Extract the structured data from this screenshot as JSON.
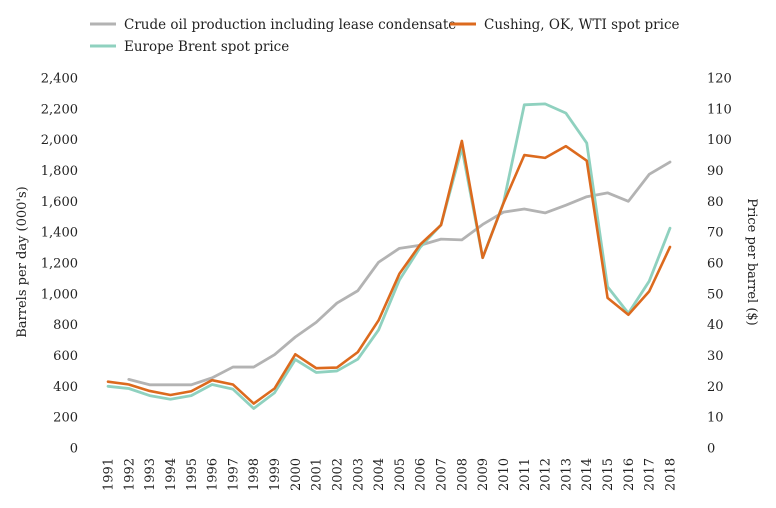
{
  "chart_data": {
    "type": "line",
    "categories": [
      "1991",
      "1992",
      "1993",
      "1994",
      "1995",
      "1996",
      "1997",
      "1998",
      "1999",
      "2000",
      "2001",
      "2002",
      "2003",
      "2004",
      "2005",
      "2006",
      "2007",
      "2008",
      "2009",
      "2010",
      "2011",
      "2012",
      "2013",
      "2014",
      "2015",
      "2016",
      "2017",
      "2018"
    ],
    "series": [
      {
        "name": "Crude oil production including lease condensate",
        "axis": "left",
        "color": "#b3b3b3",
        "values": [
          null,
          445,
          410,
          410,
          410,
          455,
          525,
          525,
          605,
          720,
          815,
          940,
          1020,
          1205,
          1295,
          1315,
          1355,
          1350,
          1450,
          1530,
          1550,
          1525,
          1575,
          1630,
          1655,
          1600,
          1775,
          1855
        ]
      },
      {
        "name": "Cushing, OK, WTI spot price",
        "axis": "right",
        "color": "#dc6a1e",
        "values": [
          21.5,
          20.6,
          18.5,
          17.2,
          18.4,
          22.0,
          20.6,
          14.4,
          19.3,
          30.4,
          25.9,
          26.1,
          31.1,
          41.4,
          56.5,
          66.0,
          72.3,
          99.6,
          61.7,
          79.4,
          95.0,
          94.1,
          97.9,
          93.2,
          48.7,
          43.2,
          50.8,
          65.2
        ]
      },
      {
        "name": "Europe Brent spot price",
        "axis": "right",
        "color": "#8fd1bf",
        "values": [
          20.0,
          19.3,
          17.0,
          15.8,
          17.0,
          20.6,
          19.1,
          12.8,
          17.9,
          28.7,
          24.5,
          25.0,
          28.8,
          38.3,
          54.5,
          65.1,
          72.4,
          97.3,
          61.7,
          79.5,
          111.3,
          111.6,
          108.6,
          98.9,
          52.3,
          43.7,
          54.1,
          71.3
        ]
      }
    ],
    "y_left": {
      "label": "Barrels per day (000's)",
      "ylim": [
        0,
        2400
      ],
      "ticks": [
        "0",
        "200",
        "400",
        "600",
        "800",
        "1,000",
        "1,200",
        "1,400",
        "1,600",
        "1,800",
        "2,000",
        "2,200",
        "2,400"
      ]
    },
    "y_right": {
      "label": "Price per barrel ($)",
      "ylim": [
        0,
        120
      ],
      "ticks": [
        "0",
        "10",
        "20",
        "30",
        "40",
        "50",
        "60",
        "70",
        "80",
        "90",
        "100",
        "110",
        "120"
      ]
    },
    "grid": false,
    "legend": "top"
  }
}
